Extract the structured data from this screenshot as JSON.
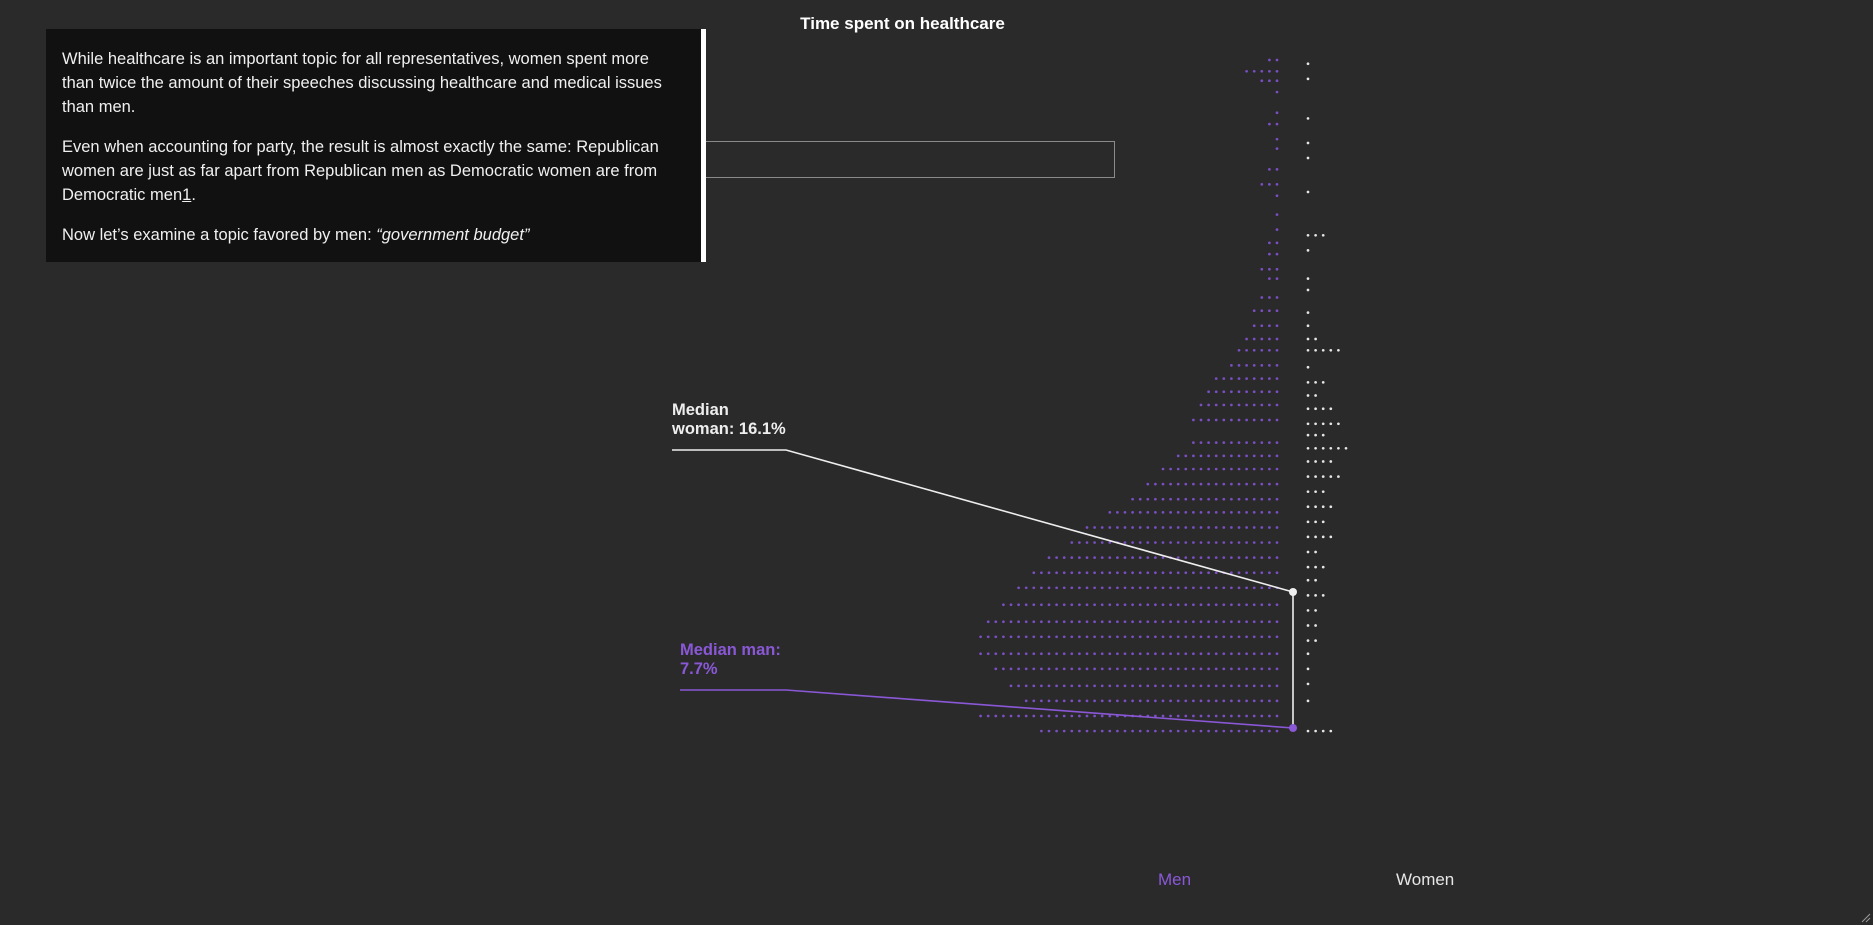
{
  "chart_data": {
    "type": "scatter",
    "title": "Time spent on healthcare",
    "series": [
      {
        "name": "Men",
        "color": "#7b4fc4"
      },
      {
        "name": "Women",
        "color": "#e6e6e6"
      }
    ],
    "x_labels": [
      "Men",
      "Women"
    ],
    "annotations": [
      {
        "key": "woman",
        "label_line1": "Median",
        "label_line2": "woman: 16.1%",
        "value": 16.1,
        "color": "#eeeeee"
      },
      {
        "key": "man",
        "label_line1": "Median man:",
        "label_line2": "7.7%",
        "value": 7.7,
        "color": "#8a58d6"
      }
    ],
    "men_rows": [
      [
        8.0,
        2
      ],
      [
        8.6,
        5
      ],
      [
        9.1,
        3
      ],
      [
        9.7,
        1
      ],
      [
        10.8,
        1
      ],
      [
        11.4,
        2
      ],
      [
        12.2,
        1
      ],
      [
        12.7,
        1
      ],
      [
        13.8,
        2
      ],
      [
        14.6,
        3
      ],
      [
        15.2,
        1
      ],
      [
        16.2,
        1
      ],
      [
        17.0,
        1
      ],
      [
        17.7,
        2
      ],
      [
        18.3,
        2
      ],
      [
        19.1,
        3
      ],
      [
        19.6,
        2
      ],
      [
        20.6,
        3
      ],
      [
        21.3,
        4
      ],
      [
        22.1,
        4
      ],
      [
        22.8,
        5
      ],
      [
        23.4,
        6
      ],
      [
        24.2,
        7
      ],
      [
        24.9,
        9
      ],
      [
        25.6,
        10
      ],
      [
        26.3,
        11
      ],
      [
        27.1,
        12
      ],
      [
        28.3,
        12
      ],
      [
        29.0,
        14
      ],
      [
        29.7,
        16
      ],
      [
        30.5,
        18
      ],
      [
        31.3,
        20
      ],
      [
        32.0,
        23
      ],
      [
        32.8,
        26
      ],
      [
        33.6,
        28
      ],
      [
        34.4,
        31
      ],
      [
        35.2,
        33
      ],
      [
        36.0,
        35
      ],
      [
        36.9,
        37
      ],
      [
        37.8,
        39
      ],
      [
        38.6,
        40
      ],
      [
        39.5,
        40
      ],
      [
        40.3,
        38
      ],
      [
        41.2,
        36
      ],
      [
        42.0,
        34
      ],
      [
        42.8,
        40
      ],
      [
        43.6,
        32
      ]
    ],
    "women_rows": [
      [
        8.2,
        1
      ],
      [
        9.0,
        1
      ],
      [
        11.1,
        1
      ],
      [
        12.4,
        1
      ],
      [
        13.2,
        1
      ],
      [
        15.0,
        1
      ],
      [
        17.3,
        3
      ],
      [
        18.1,
        1
      ],
      [
        19.6,
        1
      ],
      [
        20.2,
        1
      ],
      [
        21.4,
        1
      ],
      [
        22.1,
        1
      ],
      [
        22.8,
        2
      ],
      [
        23.4,
        5
      ],
      [
        24.3,
        1
      ],
      [
        25.1,
        3
      ],
      [
        25.8,
        2
      ],
      [
        26.5,
        4
      ],
      [
        27.3,
        5
      ],
      [
        27.9,
        3
      ],
      [
        28.6,
        6
      ],
      [
        29.3,
        4
      ],
      [
        30.1,
        5
      ],
      [
        30.9,
        3
      ],
      [
        31.7,
        4
      ],
      [
        32.5,
        3
      ],
      [
        33.3,
        4
      ],
      [
        34.1,
        2
      ],
      [
        34.9,
        3
      ],
      [
        35.6,
        2
      ],
      [
        36.4,
        3
      ],
      [
        37.2,
        2
      ],
      [
        38.0,
        2
      ],
      [
        38.8,
        2
      ],
      [
        39.5,
        1
      ],
      [
        40.3,
        1
      ],
      [
        41.1,
        1
      ],
      [
        42.0,
        1
      ],
      [
        43.6,
        4
      ]
    ]
  }
}
